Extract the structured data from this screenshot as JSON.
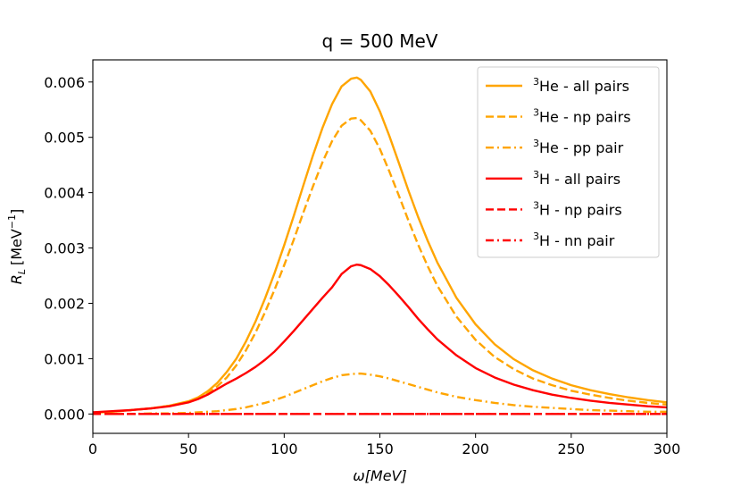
{
  "chart_data": {
    "type": "line",
    "title": "q = 500 MeV",
    "xlabel": "ω[MeV]",
    "ylabel_main": "R",
    "ylabel_sub": "L",
    "ylabel_unit": "[MeV",
    "ylabel_exp": "−1",
    "ylabel_close": "]",
    "xlim": [
      0,
      300
    ],
    "ylim": [
      -0.00035,
      0.0064
    ],
    "xticks": [
      0,
      50,
      100,
      150,
      200,
      250,
      300
    ],
    "yticks": [
      0.0,
      0.001,
      0.002,
      0.003,
      0.004,
      0.005,
      0.006
    ],
    "xtick_labels": [
      "0",
      "50",
      "100",
      "150",
      "200",
      "250",
      "300"
    ],
    "ytick_labels": [
      "0.000",
      "0.001",
      "0.002",
      "0.003",
      "0.004",
      "0.005",
      "0.006"
    ],
    "x": [
      0,
      10,
      20,
      30,
      40,
      50,
      55,
      60,
      65,
      70,
      75,
      80,
      85,
      90,
      95,
      100,
      105,
      110,
      115,
      120,
      125,
      130,
      135,
      138,
      140,
      145,
      150,
      155,
      160,
      165,
      170,
      175,
      180,
      190,
      200,
      210,
      220,
      230,
      240,
      250,
      260,
      270,
      280,
      290,
      300
    ],
    "series": [
      {
        "name": "all pairs",
        "prefix": "3",
        "nucleus": "He",
        "color": "#FFA500",
        "dash": "solid",
        "values": [
          2e-05,
          4e-05,
          7e-05,
          0.0001,
          0.00015,
          0.00023,
          0.0003,
          0.00041,
          0.00056,
          0.00076,
          0.001,
          0.00131,
          0.00167,
          0.00209,
          0.00255,
          0.00305,
          0.00358,
          0.00413,
          0.00467,
          0.00517,
          0.0056,
          0.00592,
          0.00606,
          0.00608,
          0.00604,
          0.00583,
          0.00547,
          0.00502,
          0.00453,
          0.00403,
          0.00356,
          0.00313,
          0.00274,
          0.0021,
          0.00162,
          0.00126,
          0.00099,
          0.00079,
          0.00064,
          0.00052,
          0.00043,
          0.00036,
          0.0003,
          0.00025,
          0.00021
        ]
      },
      {
        "name": "np pairs",
        "prefix": "3",
        "nucleus": "He",
        "color": "#FFA500",
        "dash": "dashed",
        "values": [
          2e-05,
          4e-05,
          7e-05,
          0.0001,
          0.00015,
          0.00022,
          0.00028,
          0.00038,
          0.0005,
          0.00066,
          0.00088,
          0.00115,
          0.00147,
          0.00184,
          0.00225,
          0.00269,
          0.00315,
          0.00364,
          0.00411,
          0.00455,
          0.00493,
          0.00521,
          0.00534,
          0.00535,
          0.00531,
          0.00512,
          0.00479,
          0.00438,
          0.00394,
          0.00349,
          0.00306,
          0.00267,
          0.00232,
          0.00176,
          0.00134,
          0.00103,
          0.00081,
          0.00064,
          0.00052,
          0.00042,
          0.00035,
          0.00029,
          0.00024,
          0.0002,
          0.00017
        ]
      },
      {
        "name": "pp pair",
        "prefix": "3",
        "nucleus": "He",
        "color": "#FFA500",
        "dash": "dashdot",
        "values": [
          0.0,
          0.0,
          0.0,
          1e-05,
          1e-05,
          2e-05,
          3e-05,
          4e-05,
          5e-05,
          7e-05,
          9e-05,
          0.00012,
          0.00016,
          0.0002,
          0.00025,
          0.00031,
          0.00038,
          0.00045,
          0.00052,
          0.00059,
          0.00065,
          0.0007,
          0.00072,
          0.00073,
          0.00073,
          0.00071,
          0.00068,
          0.00064,
          0.00059,
          0.00054,
          0.00049,
          0.00044,
          0.00039,
          0.00031,
          0.00025,
          0.0002,
          0.00016,
          0.00013,
          0.00011,
          9e-05,
          7e-05,
          6e-05,
          5e-05,
          4e-05,
          4e-05
        ]
      },
      {
        "name": "all pairs",
        "prefix": "3",
        "nucleus": "H",
        "color": "#FF0000",
        "dash": "solid",
        "values": [
          3e-05,
          5e-05,
          7e-05,
          0.0001,
          0.00014,
          0.00021,
          0.00027,
          0.00035,
          0.00045,
          0.00055,
          0.00064,
          0.00074,
          0.00085,
          0.00098,
          0.00113,
          0.00131,
          0.0015,
          0.0017,
          0.0019,
          0.0021,
          0.00229,
          0.00253,
          0.00267,
          0.0027,
          0.00269,
          0.00262,
          0.00249,
          0.00232,
          0.00213,
          0.00193,
          0.00172,
          0.00153,
          0.00135,
          0.00106,
          0.00083,
          0.00066,
          0.00053,
          0.00043,
          0.00035,
          0.00029,
          0.00024,
          0.0002,
          0.00017,
          0.00014,
          0.00012
        ]
      },
      {
        "name": "np pairs",
        "prefix": "3",
        "nucleus": "H",
        "color": "#FF0000",
        "dash": "dashed",
        "values": [
          0.0,
          0.0,
          0.0,
          0.0,
          0.0,
          0.0,
          0.0,
          0.0,
          0.0,
          0.0,
          0.0,
          0.0,
          0.0,
          0.0,
          0.0,
          0.0,
          0.0,
          0.0,
          0.0,
          0.0,
          0.0,
          0.0,
          0.0,
          0.0,
          0.0,
          0.0,
          0.0,
          0.0,
          0.0,
          0.0,
          0.0,
          0.0,
          0.0,
          0.0,
          0.0,
          0.0,
          0.0,
          0.0,
          0.0,
          0.0,
          0.0,
          0.0,
          0.0,
          0.0,
          0.0
        ]
      },
      {
        "name": "nn pair",
        "prefix": "3",
        "nucleus": "H",
        "color": "#FF0000",
        "dash": "dashdot",
        "values": [
          0.0,
          0.0,
          0.0,
          0.0,
          0.0,
          0.0,
          0.0,
          0.0,
          0.0,
          0.0,
          0.0,
          0.0,
          0.0,
          0.0,
          0.0,
          0.0,
          0.0,
          0.0,
          0.0,
          0.0,
          0.0,
          0.0,
          0.0,
          0.0,
          0.0,
          0.0,
          0.0,
          0.0,
          0.0,
          0.0,
          0.0,
          0.0,
          0.0,
          0.0,
          0.0,
          0.0,
          0.0,
          0.0,
          0.0,
          0.0,
          0.0,
          0.0,
          0.0,
          0.0,
          0.0
        ]
      }
    ],
    "legend": {
      "position": "top-right",
      "separator": " - "
    },
    "grid": false
  }
}
